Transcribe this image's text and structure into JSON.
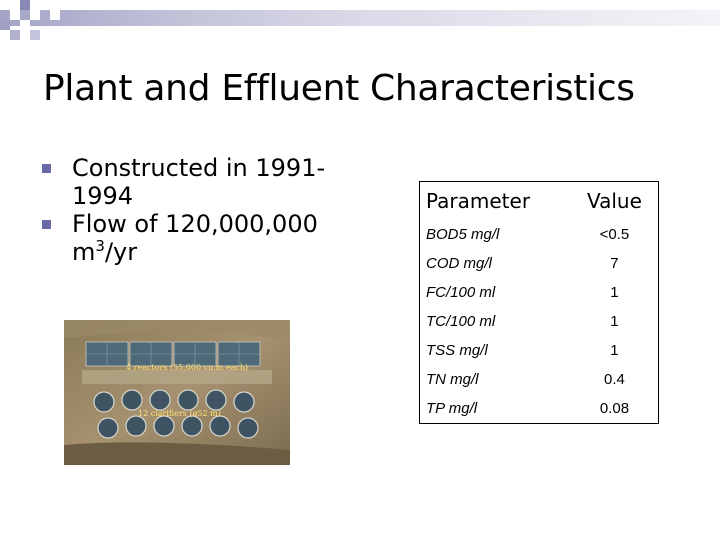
{
  "slide": {
    "title": "Plant and Effluent Characteristics",
    "bullets": [
      {
        "text": "Constructed in 1991-1994"
      },
      {
        "text": "Flow of 120,000,000 m",
        "sup": "3",
        "suffix": "/yr"
      }
    ]
  },
  "photo": {
    "caption_reactors": "4 reactors (55,000 cu.m each)",
    "caption_clarifiers": "12 clarifiers (ø52 m)"
  },
  "table": {
    "headers": {
      "parameter": "Parameter",
      "value": "Value"
    },
    "rows": [
      {
        "parameter": "BOD5 mg/l",
        "value": "<0.5"
      },
      {
        "parameter": "COD mg/l",
        "value": "7"
      },
      {
        "parameter": "FC/100 ml",
        "value": "1"
      },
      {
        "parameter": "TC/100 ml",
        "value": "1"
      },
      {
        "parameter": "TSS mg/l",
        "value": "1"
      },
      {
        "parameter": "TN mg/l",
        "value": "0.4"
      },
      {
        "parameter": "TP mg/l",
        "value": "0.08"
      }
    ]
  },
  "colors": {
    "bullet": "#6a6aa6",
    "decoration": "#b8b8d0"
  }
}
